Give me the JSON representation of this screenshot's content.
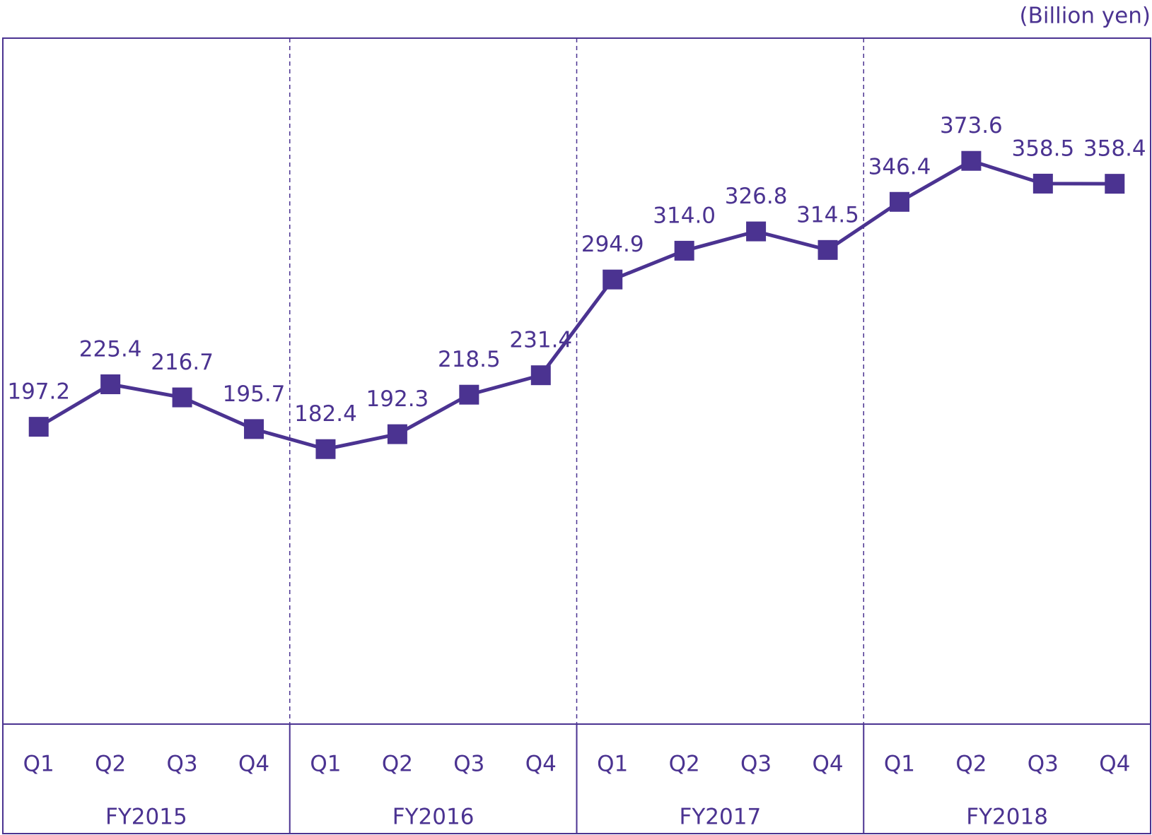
{
  "chart_data": {
    "type": "line",
    "unit_label": "(Billion yen)",
    "categories": [
      "Q1",
      "Q2",
      "Q3",
      "Q4",
      "Q1",
      "Q2",
      "Q3",
      "Q4",
      "Q1",
      "Q2",
      "Q3",
      "Q4",
      "Q1",
      "Q2",
      "Q3",
      "Q4"
    ],
    "groups": [
      "FY2015",
      "FY2016",
      "FY2017",
      "FY2018"
    ],
    "values": [
      197.2,
      225.4,
      216.7,
      195.7,
      182.4,
      192.3,
      218.5,
      231.4,
      294.9,
      314.0,
      326.8,
      314.5,
      346.4,
      373.6,
      358.5,
      358.4
    ],
    "value_labels": [
      "197.2",
      "225.4",
      "216.7",
      "195.7",
      "182.4",
      "192.3",
      "218.5",
      "231.4",
      "294.9",
      "314.0",
      "326.8",
      "314.5",
      "346.4",
      "373.6",
      "358.5",
      "358.4"
    ],
    "color": "#4b3391",
    "ylim": [
      0,
      455
    ]
  }
}
